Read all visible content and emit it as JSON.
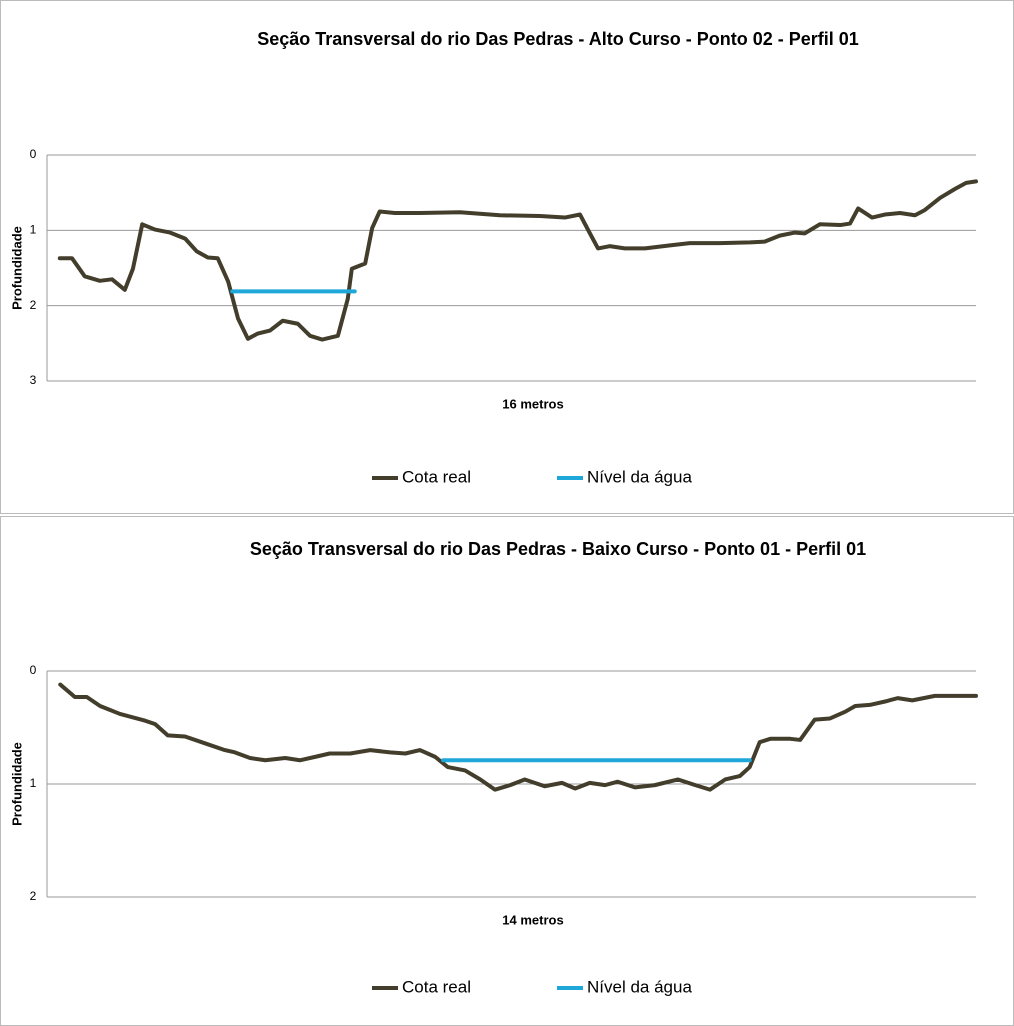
{
  "chart_data": [
    {
      "type": "line",
      "title": "Seção Transversal do rio Das Pedras - Alto Curso -  Ponto 02 - Perfil 01",
      "x_label": "16 metros",
      "y_label": "Profundidade",
      "xlim": [
        0,
        16
      ],
      "ylim": [
        0,
        3
      ],
      "yticks": [
        0,
        1,
        2,
        3
      ],
      "invert_y": true,
      "grid": true,
      "legend": "bottom",
      "series": [
        {
          "name": "Cota real",
          "color": "#433d2c",
          "x": [
            0.22,
            0.43,
            0.65,
            0.91,
            1.12,
            1.34,
            1.48,
            1.64,
            1.86,
            2.12,
            2.38,
            2.58,
            2.77,
            2.94,
            3.12,
            3.29,
            3.46,
            3.63,
            3.84,
            4.06,
            4.32,
            4.53,
            4.74,
            5.01,
            5.18,
            5.25,
            5.48,
            5.6,
            5.73,
            5.99,
            6.42,
            7.11,
            7.8,
            8.49,
            8.92,
            9.18,
            9.35,
            9.49,
            9.69,
            9.95,
            10.3,
            10.73,
            11.07,
            11.59,
            12.11,
            12.36,
            12.62,
            12.88,
            13.05,
            13.31,
            13.66,
            13.83,
            13.97,
            14.21,
            14.43,
            14.69,
            14.95,
            15.12,
            15.38,
            15.64,
            15.83,
            16
          ],
          "values": [
            1.37,
            1.37,
            1.61,
            1.67,
            1.65,
            1.79,
            1.51,
            0.92,
            0.99,
            1.03,
            1.11,
            1.28,
            1.36,
            1.37,
            1.68,
            2.17,
            2.44,
            2.37,
            2.33,
            2.2,
            2.24,
            2.4,
            2.45,
            2.4,
            1.91,
            1.51,
            1.44,
            0.97,
            0.75,
            0.77,
            0.77,
            0.76,
            0.8,
            0.81,
            0.83,
            0.79,
            1.04,
            1.24,
            1.21,
            1.24,
            1.24,
            1.2,
            1.17,
            1.17,
            1.16,
            1.15,
            1.07,
            1.03,
            1.04,
            0.92,
            0.93,
            0.91,
            0.71,
            0.83,
            0.79,
            0.77,
            0.8,
            0.73,
            0.57,
            0.45,
            0.37,
            0.35
          ]
        },
        {
          "name": "Nível da água",
          "color": "#1ea7d8",
          "x": [
            3.19,
            5.3
          ],
          "values": [
            1.81,
            1.81
          ]
        }
      ]
    },
    {
      "type": "line",
      "title": "Seção Transversal do rio Das Pedras -  Baixo Curso - Ponto 01 - Perfil 01",
      "x_label": "14 metros",
      "y_label": "Profundidade",
      "xlim": [
        0,
        14
      ],
      "ylim": [
        0,
        2
      ],
      "yticks": [
        0,
        1,
        2
      ],
      "invert_y": true,
      "grid": true,
      "legend": "bottom",
      "series": [
        {
          "name": "Cota real",
          "color": "#433d2c",
          "x": [
            0.2,
            0.42,
            0.6,
            0.8,
            1.1,
            1.48,
            1.63,
            1.82,
            2.08,
            2.38,
            2.68,
            2.83,
            3.06,
            3.29,
            3.59,
            3.81,
            4.04,
            4.26,
            4.57,
            4.87,
            5.17,
            5.4,
            5.62,
            5.85,
            6.04,
            6.3,
            6.53,
            6.75,
            6.98,
            7.2,
            7.5,
            7.76,
            7.96,
            8.18,
            8.41,
            8.6,
            8.86,
            9.16,
            9.51,
            9.77,
            9.99,
            10.22,
            10.44,
            10.59,
            10.74,
            10.9,
            11.2,
            11.35,
            11.57,
            11.8,
            12.03,
            12.18,
            12.4,
            12.63,
            12.82,
            13.04,
            13.38,
            14
          ],
          "values": [
            0.12,
            0.23,
            0.23,
            0.31,
            0.38,
            0.44,
            0.47,
            0.57,
            0.58,
            0.64,
            0.7,
            0.72,
            0.77,
            0.79,
            0.77,
            0.79,
            0.76,
            0.73,
            0.73,
            0.7,
            0.72,
            0.73,
            0.7,
            0.76,
            0.85,
            0.88,
            0.96,
            1.05,
            1.01,
            0.96,
            1.02,
            0.99,
            1.04,
            0.99,
            1.01,
            0.98,
            1.03,
            1.01,
            0.96,
            1.01,
            1.05,
            0.96,
            0.93,
            0.85,
            0.63,
            0.6,
            0.6,
            0.61,
            0.43,
            0.42,
            0.36,
            0.31,
            0.3,
            0.27,
            0.24,
            0.26,
            0.22,
            0.22
          ]
        },
        {
          "name": "Nível da água",
          "color": "#1ea7d8",
          "x": [
            5.97,
            10.59
          ],
          "values": [
            0.79,
            0.79
          ]
        }
      ]
    }
  ]
}
